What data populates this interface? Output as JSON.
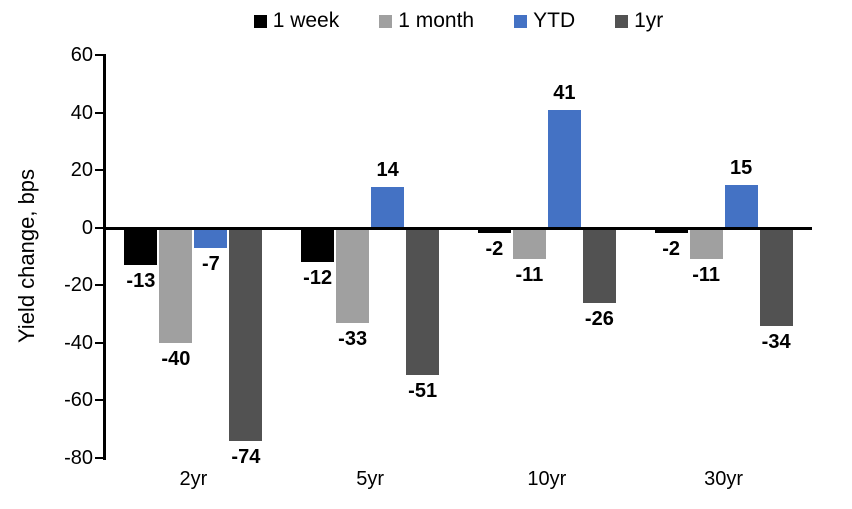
{
  "chart_data": {
    "type": "bar",
    "title": "",
    "ylabel": "Yield change, bps",
    "xlabel": "",
    "categories": [
      "2yr",
      "5yr",
      "10yr",
      "30yr"
    ],
    "series": [
      {
        "name": "1 week",
        "color": "#000000",
        "values": [
          -13,
          -12,
          -2,
          -2
        ]
      },
      {
        "name": "1 month",
        "color": "#A0A0A0",
        "values": [
          -40,
          -33,
          -11,
          -11
        ]
      },
      {
        "name": "YTD",
        "color": "#4472C4",
        "values": [
          -7,
          14,
          41,
          15
        ]
      },
      {
        "name": "1yr",
        "color": "#525252",
        "values": [
          -74,
          -51,
          -26,
          -34
        ]
      }
    ],
    "ylim": [
      -80,
      60
    ],
    "yticks": [
      60,
      40,
      20,
      0,
      -20,
      -40,
      -60,
      -80
    ],
    "grid": false,
    "legend_position": "top",
    "data_labels": true,
    "axis_color": "#000000"
  }
}
